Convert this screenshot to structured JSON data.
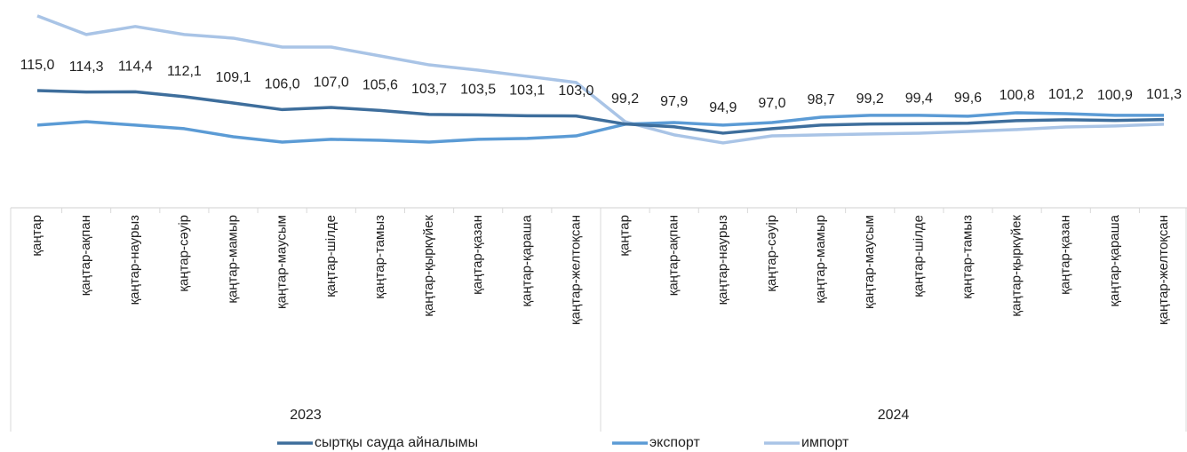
{
  "chart_data": {
    "type": "line",
    "categories": [
      "қаңтар",
      "қаңтар-ақпан",
      "қаңтар-наурыз",
      "қаңтар-сәуір",
      "қаңтар-мамыр",
      "қаңтар-маусым",
      "қаңтар-шілде",
      "қаңтар-тамыз",
      "қаңтар-қыркүйек",
      "қаңтар-қазан",
      "қаңтар-қараша",
      "қаңтар-желтоқсан",
      "қаңтар",
      "қаңтар-ақпан",
      "қаңтар-наурыз",
      "қаңтар-сәуір",
      "қаңтар-мамыр",
      "қаңтар-маусым",
      "қаңтар-шілде",
      "қаңтар-тамыз",
      "қаңтар-қыркүйек",
      "қаңтар-қазан",
      "қаңтар-қараша",
      "қаңтар-желтоқсан"
    ],
    "groups": [
      "2023",
      "2024"
    ],
    "series": [
      {
        "name": "сыртқы сауда айналымы",
        "color": "#3e6e9c",
        "values": [
          115.0,
          114.3,
          114.4,
          112.1,
          109.1,
          106.0,
          107.0,
          105.6,
          103.7,
          103.5,
          103.1,
          103.0,
          99.2,
          97.9,
          94.9,
          97.0,
          98.7,
          99.2,
          99.4,
          99.6,
          100.8,
          101.2,
          100.9,
          101.3
        ],
        "value_labels": [
          "115,0",
          "114,3",
          "114,4",
          "112,1",
          "109,1",
          "106,0",
          "107,0",
          "105,6",
          "103,7",
          "103,5",
          "103,1",
          "103,0",
          "99,2",
          "97,9",
          "94,9",
          "97,0",
          "98,7",
          "99,2",
          "99,4",
          "99,6",
          "100,8",
          "101,2",
          "100,9",
          "101,3"
        ]
      },
      {
        "name": "экспорт",
        "color": "#5b9bd5",
        "values": [
          98.7,
          100.3,
          98.7,
          97.0,
          93.2,
          90.7,
          92.0,
          91.5,
          90.7,
          92.0,
          92.4,
          93.6,
          99.1,
          99.9,
          98.7,
          99.9,
          102.4,
          103.3,
          103.3,
          102.9,
          104.5,
          104.1,
          103.3,
          103.3
        ]
      },
      {
        "name": "импорт",
        "color": "#a9c4e6",
        "values": [
          150.2,
          141.4,
          145.2,
          141.4,
          139.7,
          135.5,
          135.5,
          131.3,
          127.1,
          124.6,
          121.7,
          118.8,
          100.3,
          94.1,
          90.3,
          93.6,
          94.1,
          94.5,
          94.9,
          95.7,
          96.6,
          97.8,
          98.3,
          99.1
        ]
      }
    ],
    "ylim": [
      59.7,
      153.5
    ]
  }
}
